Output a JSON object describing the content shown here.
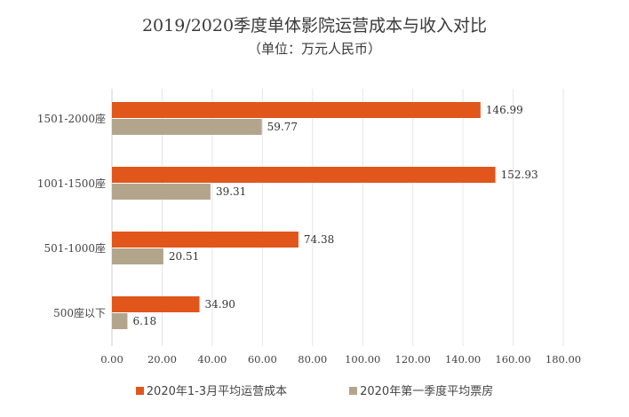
{
  "chart_data": {
    "type": "bar",
    "orientation": "horizontal",
    "title": "2019/2020季度单体影院运营成本与收入对比",
    "subtitle": "（单位：万元人民币）",
    "categories": [
      "1501-2000座",
      "1001-1500座",
      "501-1000座",
      "500座以下"
    ],
    "series": [
      {
        "name": "2020年1-3月平均运营成本",
        "color": "#E0561B",
        "values": [
          146.99,
          152.93,
          74.38,
          34.9
        ],
        "labels": [
          "146.99",
          "152.93",
          "74.38",
          "34.90"
        ]
      },
      {
        "name": "2020年第一季度平均票房",
        "color": "#B3A58C",
        "values": [
          59.77,
          39.31,
          20.51,
          6.18
        ],
        "labels": [
          "59.77",
          "39.31",
          "20.51",
          "6.18"
        ]
      }
    ],
    "xlim": [
      0,
      180
    ],
    "xticks": [
      "0.00",
      "20.00",
      "40.00",
      "60.00",
      "80.00",
      "100.00",
      "120.00",
      "140.00",
      "160.00",
      "180.00"
    ],
    "grid": "vertical",
    "legend": "bottom"
  }
}
